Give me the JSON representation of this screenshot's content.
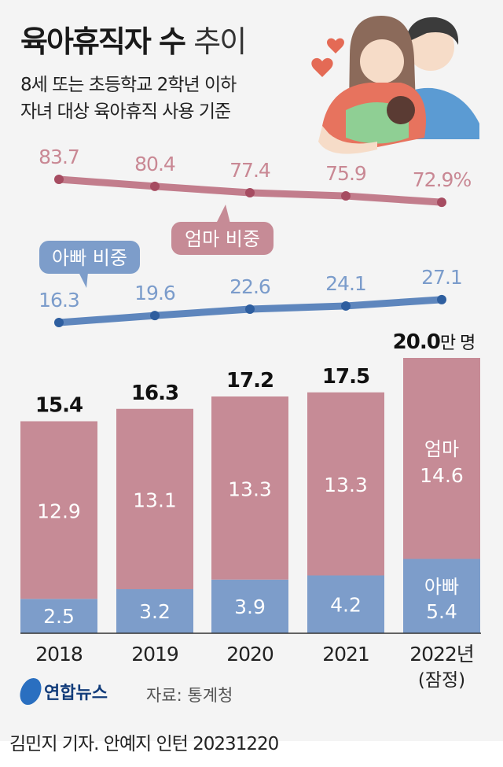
{
  "header": {
    "title_bold": "육아휴직자 수",
    "title_light": "추이",
    "subtitle_line1": "8세 또는 초등학교 2학년 이하",
    "subtitle_line2": "자녀 대상 육아휴직 사용 기준"
  },
  "colors": {
    "mom_bar": "#c68b96",
    "mom_line": "#c27d8c",
    "mom_dot": "#a64c61",
    "mom_label": "#c98894",
    "dad_bar": "#7d9dca",
    "dad_line": "#5e86bd",
    "dad_dot": "#2e5e9f",
    "dad_label": "#7b9ccb"
  },
  "chart_data": [
    {
      "type": "line",
      "categories": [
        "2018",
        "2019",
        "2020",
        "2021",
        "2022"
      ],
      "unit": "%",
      "series": [
        {
          "name": "엄마 비중",
          "values": [
            83.7,
            80.4,
            77.4,
            75.9,
            72.9
          ],
          "labels": [
            "83.7",
            "80.4",
            "77.4",
            "75.9",
            "72.9%"
          ]
        },
        {
          "name": "아빠 비중",
          "values": [
            16.3,
            19.6,
            22.6,
            24.1,
            27.1
          ],
          "labels": [
            "16.3",
            "19.6",
            "22.6",
            "24.1",
            "27.1"
          ]
        }
      ]
    },
    {
      "type": "bar",
      "stacked": true,
      "categories": [
        "2018",
        "2019",
        "2020",
        "2021",
        "2022년"
      ],
      "category_note": "(잠정)",
      "totals": [
        15.4,
        16.3,
        17.2,
        17.5,
        20.0
      ],
      "total_labels": [
        "15.4",
        "16.3",
        "17.2",
        "17.5",
        "20.0"
      ],
      "total_unit": "만 명",
      "series": [
        {
          "name": "아빠",
          "values": [
            2.5,
            3.2,
            3.9,
            4.2,
            5.4
          ]
        },
        {
          "name": "엄마",
          "values": [
            12.9,
            13.1,
            13.3,
            13.3,
            14.6
          ]
        }
      ],
      "ylim": [
        0,
        20
      ]
    }
  ],
  "footer": {
    "logo_text": "연합뉴스",
    "source": "자료: 통계청",
    "byline": "김민지 기자. 안예지 인턴  20231220"
  }
}
